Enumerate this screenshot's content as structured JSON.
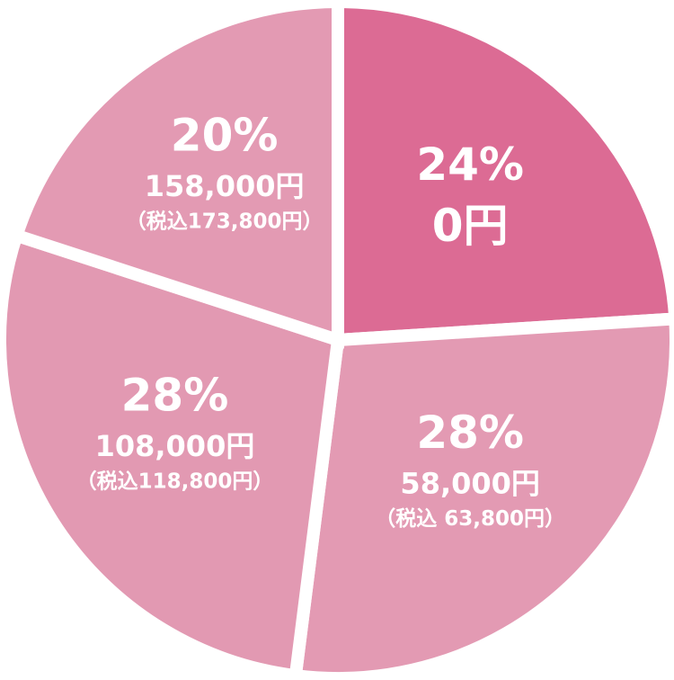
{
  "chart_data": {
    "type": "pie",
    "values": [
      24,
      28,
      28,
      20
    ],
    "value_labels": [
      "24%",
      "28%",
      "28%",
      "20%"
    ],
    "colors": [
      "#dc6b94",
      "#e39ab3",
      "#e299b2",
      "#e39ab3"
    ],
    "annotations": [
      [
        "0円"
      ],
      [
        "58,000円",
        "（税込 63,800円）"
      ],
      [
        "108,000円",
        "（税込118,800円）"
      ],
      [
        "158,000円",
        "（税込173,800円）"
      ]
    ]
  }
}
